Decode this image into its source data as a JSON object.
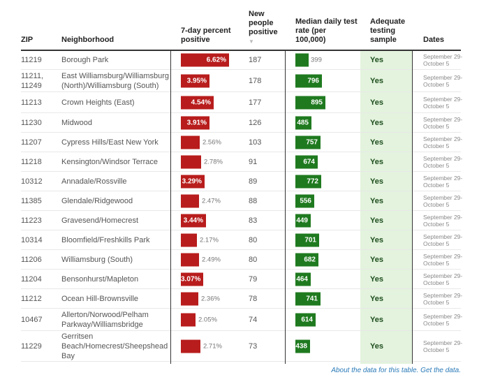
{
  "headers": {
    "zip": "ZIP",
    "neighborhood": "Neighborhood",
    "pct": "7-day percent positive",
    "new": "New people positive",
    "sort_icon": "▼",
    "rate": "Median daily test rate (per 100,000)",
    "adequate": "Adequate testing sample",
    "dates": "Dates"
  },
  "colors": {
    "pct_bar": "#b81c1c",
    "rate_bar": "#1f7a1f",
    "adequate_bg": "#e3f3dd"
  },
  "rows": [
    {
      "zip": "11219",
      "neighborhood": "Borough Park",
      "pct": 6.62,
      "pct_label": "6.62%",
      "new": "187",
      "rate": 399,
      "rate_label": "399",
      "adequate": "Yes",
      "dates": "September 29-October 5"
    },
    {
      "zip": "11211, 11249",
      "neighborhood": "East Williamsburg/Williamsburg (North)/Williamsburg (South)",
      "pct": 3.95,
      "pct_label": "3.95%",
      "new": "178",
      "rate": 796,
      "rate_label": "796",
      "adequate": "Yes",
      "dates": "September 29-October 5"
    },
    {
      "zip": "11213",
      "neighborhood": "Crown Heights (East)",
      "pct": 4.54,
      "pct_label": "4.54%",
      "new": "177",
      "rate": 895,
      "rate_label": "895",
      "adequate": "Yes",
      "dates": "September 29-October 5"
    },
    {
      "zip": "11230",
      "neighborhood": "Midwood",
      "pct": 3.91,
      "pct_label": "3.91%",
      "new": "126",
      "rate": 485,
      "rate_label": "485",
      "adequate": "Yes",
      "dates": "September 29-October 5"
    },
    {
      "zip": "11207",
      "neighborhood": "Cypress Hills/East New York",
      "pct": 2.56,
      "pct_label": "2.56%",
      "new": "103",
      "rate": 757,
      "rate_label": "757",
      "adequate": "Yes",
      "dates": "September 29-October 5"
    },
    {
      "zip": "11218",
      "neighborhood": "Kensington/Windsor Terrace",
      "pct": 2.78,
      "pct_label": "2.78%",
      "new": "91",
      "rate": 674,
      "rate_label": "674",
      "adequate": "Yes",
      "dates": "September 29-October 5"
    },
    {
      "zip": "10312",
      "neighborhood": "Annadale/Rossville",
      "pct": 3.29,
      "pct_label": "3.29%",
      "new": "89",
      "rate": 772,
      "rate_label": "772",
      "adequate": "Yes",
      "dates": "September 29-October 5"
    },
    {
      "zip": "11385",
      "neighborhood": "Glendale/Ridgewood",
      "pct": 2.47,
      "pct_label": "2.47%",
      "new": "88",
      "rate": 556,
      "rate_label": "556",
      "adequate": "Yes",
      "dates": "September 29-October 5"
    },
    {
      "zip": "11223",
      "neighborhood": "Gravesend/Homecrest",
      "pct": 3.44,
      "pct_label": "3.44%",
      "new": "83",
      "rate": 449,
      "rate_label": "449",
      "adequate": "Yes",
      "dates": "September 29-October 5"
    },
    {
      "zip": "10314",
      "neighborhood": "Bloomfield/Freshkills Park",
      "pct": 2.17,
      "pct_label": "2.17%",
      "new": "80",
      "rate": 701,
      "rate_label": "701",
      "adequate": "Yes",
      "dates": "September 29-October 5"
    },
    {
      "zip": "11206",
      "neighborhood": "Williamsburg (South)",
      "pct": 2.49,
      "pct_label": "2.49%",
      "new": "80",
      "rate": 682,
      "rate_label": "682",
      "adequate": "Yes",
      "dates": "September 29-October 5"
    },
    {
      "zip": "11204",
      "neighborhood": "Bensonhurst/Mapleton",
      "pct": 3.07,
      "pct_label": "3.07%",
      "new": "79",
      "rate": 464,
      "rate_label": "464",
      "adequate": "Yes",
      "dates": "September 29-October 5"
    },
    {
      "zip": "11212",
      "neighborhood": "Ocean Hill-Brownsville",
      "pct": 2.36,
      "pct_label": "2.36%",
      "new": "78",
      "rate": 741,
      "rate_label": "741",
      "adequate": "Yes",
      "dates": "September 29-October 5"
    },
    {
      "zip": "10467",
      "neighborhood": "Allerton/Norwood/Pelham Parkway/Williamsbridge",
      "pct": 2.05,
      "pct_label": "2.05%",
      "new": "74",
      "rate": 614,
      "rate_label": "614",
      "adequate": "Yes",
      "dates": "September 29-October 5"
    },
    {
      "zip": "11229",
      "neighborhood": "Gerritsen Beach/Homecrest/Sheepshead Bay",
      "pct": 2.71,
      "pct_label": "2.71%",
      "new": "73",
      "rate": 438,
      "rate_label": "438",
      "adequate": "Yes",
      "dates": "September 29-October 5"
    }
  ],
  "footer": "About the data for this table. Get the data."
}
